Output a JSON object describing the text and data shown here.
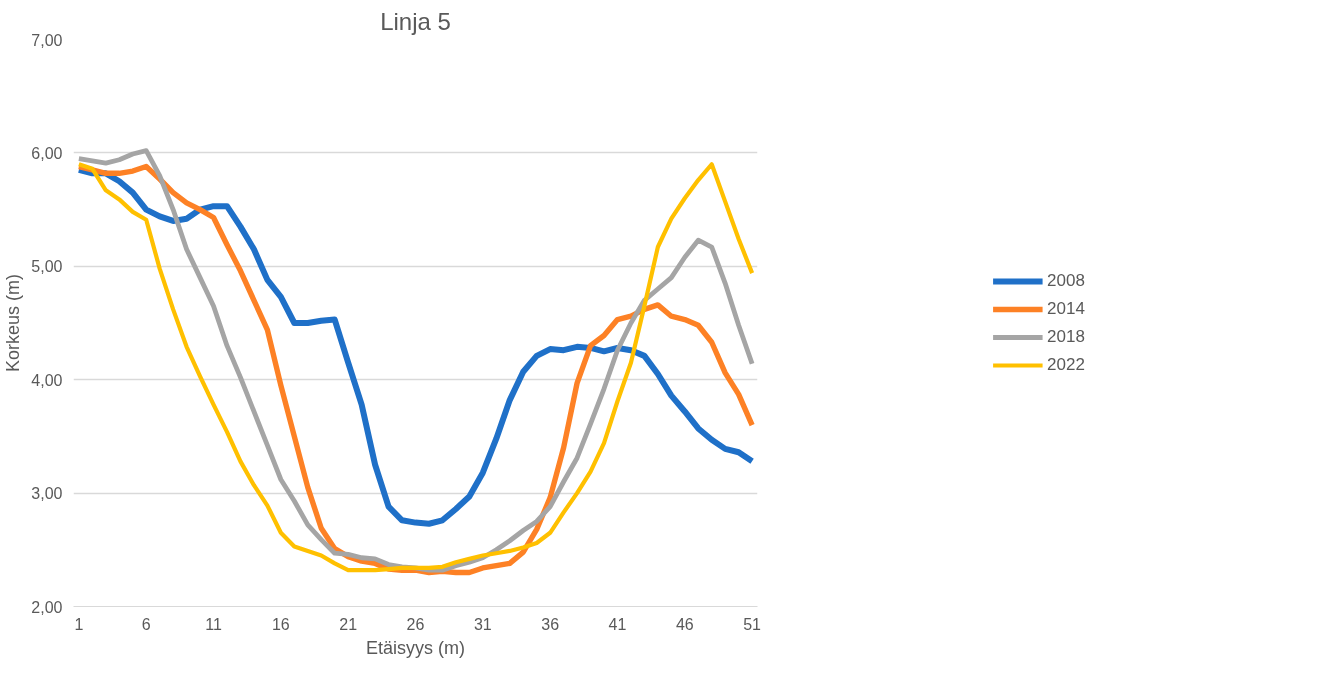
{
  "chart_data": {
    "type": "line",
    "title": "Linja 5",
    "xlabel": "Etäisyys (m)",
    "ylabel": "Korkeus (m)",
    "x": [
      1,
      2,
      3,
      4,
      5,
      6,
      7,
      8,
      9,
      10,
      11,
      12,
      13,
      14,
      15,
      16,
      17,
      18,
      19,
      20,
      21,
      22,
      23,
      24,
      25,
      26,
      27,
      28,
      29,
      30,
      31,
      32,
      33,
      34,
      35,
      36,
      37,
      38,
      39,
      40,
      41,
      42,
      43,
      44,
      45,
      46,
      47,
      48,
      49,
      50,
      51
    ],
    "xlim": [
      0.6,
      51.4
    ],
    "xticks": [
      1,
      6,
      11,
      16,
      21,
      26,
      31,
      36,
      41,
      46,
      51
    ],
    "ylim": [
      2,
      7
    ],
    "yticks": [
      {
        "value": 2,
        "label": "2,00"
      },
      {
        "value": 3,
        "label": "3,00"
      },
      {
        "value": 4,
        "label": "4,00"
      },
      {
        "value": 5,
        "label": "5,00"
      },
      {
        "value": 6,
        "label": "6,00"
      },
      {
        "value": 7,
        "label": "7,00"
      }
    ],
    "grid": "y",
    "legend": "right",
    "marker": "none",
    "line_style": "solid",
    "series": [
      {
        "name": "2008",
        "color": "#1f70c8",
        "values": [
          5.85,
          5.82,
          5.82,
          5.75,
          5.65,
          5.5,
          5.44,
          5.4,
          5.42,
          5.5,
          5.53,
          5.53,
          5.35,
          5.15,
          4.88,
          4.73,
          4.5,
          4.5,
          4.52,
          4.53,
          4.15,
          3.78,
          3.25,
          2.88,
          2.76,
          2.74,
          2.73,
          2.76,
          2.86,
          2.97,
          3.18,
          3.48,
          3.82,
          4.07,
          4.21,
          4.27,
          4.26,
          4.29,
          4.28,
          4.25,
          4.28,
          4.26,
          4.21,
          4.05,
          3.86,
          3.72,
          3.57,
          3.47,
          3.39,
          3.36,
          3.28
        ]
      },
      {
        "name": "2014",
        "color": "#fd8125",
        "values": [
          5.88,
          5.85,
          5.82,
          5.82,
          5.84,
          5.88,
          5.77,
          5.65,
          5.56,
          5.5,
          5.43,
          5.19,
          4.96,
          4.7,
          4.44,
          3.95,
          3.5,
          3.05,
          2.69,
          2.51,
          2.44,
          2.4,
          2.38,
          2.33,
          2.32,
          2.32,
          2.3,
          2.31,
          2.3,
          2.3,
          2.34,
          2.36,
          2.38,
          2.48,
          2.68,
          2.96,
          3.4,
          3.97,
          4.3,
          4.39,
          4.53,
          4.56,
          4.62,
          4.66,
          4.56,
          4.53,
          4.48,
          4.33,
          4.06,
          3.87,
          3.6
        ]
      },
      {
        "name": "2018",
        "color": "#a5a5a5",
        "values": [
          5.95,
          5.93,
          5.91,
          5.94,
          5.99,
          6.02,
          5.8,
          5.5,
          5.15,
          4.9,
          4.65,
          4.3,
          4.02,
          3.72,
          3.42,
          3.12,
          2.93,
          2.72,
          2.59,
          2.47,
          2.46,
          2.43,
          2.42,
          2.37,
          2.35,
          2.34,
          2.32,
          2.32,
          2.36,
          2.39,
          2.43,
          2.5,
          2.58,
          2.67,
          2.75,
          2.88,
          3.1,
          3.31,
          3.61,
          3.92,
          4.26,
          4.5,
          4.7,
          4.8,
          4.9,
          5.08,
          5.23,
          5.17,
          4.85,
          4.48,
          4.14
        ]
      },
      {
        "name": "2022",
        "color": "#ffc000",
        "values": [
          5.9,
          5.86,
          5.67,
          5.59,
          5.48,
          5.41,
          4.98,
          4.62,
          4.29,
          4.03,
          3.78,
          3.54,
          3.28,
          3.07,
          2.89,
          2.65,
          2.53,
          2.49,
          2.45,
          2.38,
          2.32,
          2.32,
          2.32,
          2.33,
          2.34,
          2.34,
          2.34,
          2.35,
          2.39,
          2.42,
          2.45,
          2.47,
          2.49,
          2.52,
          2.56,
          2.65,
          2.83,
          3.0,
          3.19,
          3.44,
          3.81,
          4.15,
          4.65,
          5.17,
          5.42,
          5.6,
          5.76,
          5.9,
          5.57,
          5.24,
          4.94
        ]
      }
    ]
  }
}
